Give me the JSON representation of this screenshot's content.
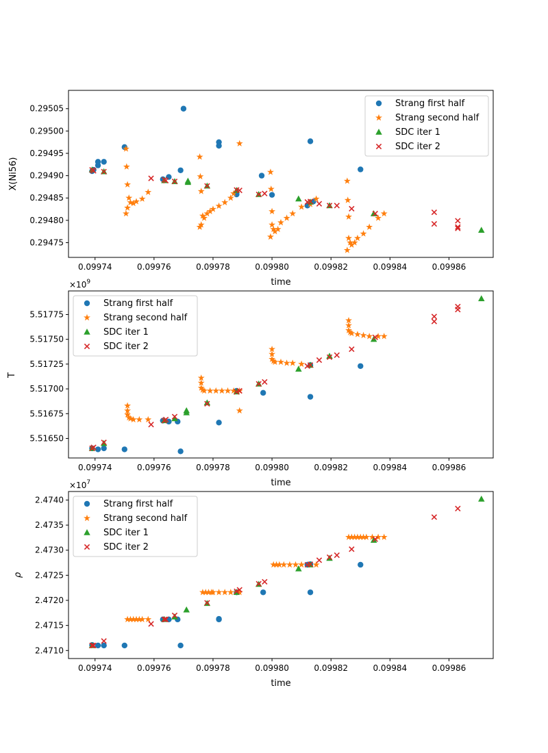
{
  "colors": {
    "strang_first": "#1f77b4",
    "strang_second": "#ff7f0e",
    "sdc1": "#2ca02c",
    "sdc2": "#d62728"
  },
  "legend_labels": [
    "Strang first half",
    "Strang second half",
    "SDC iter 1",
    "SDC iter 2"
  ],
  "chart_data": [
    {
      "type": "scatter",
      "title": "",
      "xlabel": "time",
      "ylabel": "X(Ni56)",
      "offset_label": "",
      "xlim": [
        0.099731,
        0.099875
      ],
      "ylim": [
        0.294717,
        0.295091
      ],
      "xticks": [
        "0.09974",
        "0.09976",
        "0.09978",
        "0.09980",
        "0.09982",
        "0.09984",
        "0.09986"
      ],
      "yticks": [
        "0.29475",
        "0.29480",
        "0.29485",
        "0.29490",
        "0.29495",
        "0.29500",
        "0.29505"
      ],
      "xtick_values": [
        0.09974,
        0.09976,
        0.09978,
        0.0998,
        0.09982,
        0.09984,
        0.09986
      ],
      "ytick_values": [
        0.29475,
        0.2948,
        0.29485,
        0.2949,
        0.29495,
        0.295,
        0.29505
      ],
      "legend_position": "upper right",
      "series": [
        {
          "name": "Strang first half",
          "marker": "circle",
          "color_key": "strang_first",
          "x": [
            0.099739,
            0.0997395,
            0.099741,
            0.099741,
            0.099743,
            0.09975,
            0.099763,
            0.099765,
            0.099769,
            0.09977,
            0.099782,
            0.099782,
            0.099788,
            0.0997965,
            0.0998,
            0.099812,
            0.099813,
            0.099814,
            0.09983
          ],
          "y": [
            0.29491,
            0.294913,
            0.294923,
            0.294931,
            0.294931,
            0.294964,
            0.294892,
            0.294897,
            0.294912,
            0.29505,
            0.294975,
            0.294967,
            0.294858,
            0.2949,
            0.294857,
            0.294833,
            0.294977,
            0.294842,
            0.294914
          ]
        },
        {
          "name": "Strang second half",
          "marker": "star",
          "color_key": "strang_second",
          "x": [
            0.0997505,
            0.0997507,
            0.099751,
            0.0997515,
            0.099752,
            0.099753,
            0.099754,
            0.099756,
            0.099758,
            0.0997755,
            0.0997757,
            0.099776,
            0.0997765,
            0.099777,
            0.099778,
            0.099779,
            0.09978,
            0.099782,
            0.099784,
            0.099786,
            0.099787,
            0.099789,
            0.0997995,
            0.0997997,
            0.0998,
            0.0998005,
            0.099801,
            0.099802,
            0.099803,
            0.099805,
            0.099807,
            0.09981,
            0.099813,
            0.099815,
            0.0998255,
            0.0998257,
            0.099826,
            0.0998265,
            0.099827,
            0.099828,
            0.099829,
            0.099831,
            0.099833,
            0.099836,
            0.099838,
            0.0997505,
            0.0997755,
            0.0997995,
            0.0998255,
            0.099751,
            0.099776,
            0.0998,
            0.099826
          ],
          "y": [
            0.29496,
            0.29492,
            0.29488,
            0.29485,
            0.29484,
            0.294838,
            0.294842,
            0.294848,
            0.294863,
            0.294942,
            0.294898,
            0.294865,
            0.29481,
            0.294805,
            0.294815,
            0.29482,
            0.294825,
            0.294832,
            0.29484,
            0.29485,
            0.29486,
            0.294972,
            0.294908,
            0.29487,
            0.29482,
            0.29478,
            0.294775,
            0.29478,
            0.294795,
            0.294805,
            0.294815,
            0.29483,
            0.294836,
            0.294848,
            0.294888,
            0.294845,
            0.294808,
            0.29475,
            0.294745,
            0.29475,
            0.29476,
            0.29477,
            0.294785,
            0.294805,
            0.294815,
            0.294815,
            0.294785,
            0.294763,
            0.294733,
            0.294828,
            0.29479,
            0.29479,
            0.29476
          ]
        },
        {
          "name": "SDC iter 1",
          "marker": "triangle",
          "color_key": "sdc1",
          "x": [
            0.099739,
            0.099743,
            0.0997635,
            0.099767,
            0.0997715,
            0.0997715,
            0.099778,
            0.099788,
            0.0997955,
            0.099809,
            0.099813,
            0.0998195,
            0.0998345,
            0.099871
          ],
          "y": [
            0.294913,
            0.294909,
            0.294889,
            0.294887,
            0.294888,
            0.294885,
            0.294877,
            0.294867,
            0.294858,
            0.294848,
            0.294841,
            0.294833,
            0.294815,
            0.294778
          ]
        },
        {
          "name": "SDC iter 2",
          "marker": "x",
          "color_key": "sdc2",
          "x": [
            0.099739,
            0.0997395,
            0.099743,
            0.099759,
            0.0997635,
            0.099764,
            0.099767,
            0.099778,
            0.099788,
            0.099789,
            0.0997955,
            0.0997975,
            0.099812,
            0.099813,
            0.099816,
            0.0998195,
            0.099822,
            0.099827,
            0.099835,
            0.099855,
            0.099855,
            0.099863,
            0.099863,
            0.099863
          ],
          "y": [
            0.294913,
            0.294911,
            0.294909,
            0.294894,
            0.294891,
            0.294889,
            0.294887,
            0.294877,
            0.294868,
            0.294867,
            0.294858,
            0.29486,
            0.294841,
            0.294842,
            0.294837,
            0.294833,
            0.294833,
            0.294826,
            0.294815,
            0.294818,
            0.294792,
            0.294799,
            0.294785,
            0.294782
          ]
        }
      ]
    },
    {
      "type": "scatter",
      "title": "",
      "xlabel": "time",
      "ylabel": "T",
      "offset_label": "×10",
      "offset_exp": "9",
      "xlim": [
        0.099731,
        0.099875
      ],
      "ylim": [
        5.516303,
        5.517988
      ],
      "xticks": [
        "0.09974",
        "0.09976",
        "0.09978",
        "0.09980",
        "0.09982",
        "0.09984",
        "0.09986"
      ],
      "yticks": [
        "5.51650",
        "5.51675",
        "5.51700",
        "5.51725",
        "5.51750",
        "5.51775"
      ],
      "xtick_values": [
        0.09974,
        0.09976,
        0.09978,
        0.0998,
        0.09982,
        0.09984,
        0.09986
      ],
      "ytick_values": [
        5.5165,
        5.51675,
        5.517,
        5.51725,
        5.5175,
        5.51775
      ],
      "legend_position": "upper left",
      "series": [
        {
          "name": "Strang first half",
          "marker": "circle",
          "color_key": "strang_first",
          "x": [
            0.099739,
            0.099741,
            0.099743,
            0.09975,
            0.099763,
            0.099765,
            0.099768,
            0.099769,
            0.099782,
            0.099788,
            0.099797,
            0.099813,
            0.099813,
            0.09983
          ],
          "y": [
            5.5164,
            5.51639,
            5.5164,
            5.51639,
            5.51668,
            5.51667,
            5.51667,
            5.51637,
            5.51666,
            5.51698,
            5.51696,
            5.51724,
            5.51692,
            5.51723
          ]
        },
        {
          "name": "Strang second half",
          "marker": "star",
          "color_key": "strang_second",
          "x": [
            0.099751,
            0.099751,
            0.099751,
            0.0997515,
            0.099752,
            0.099753,
            0.099755,
            0.099758,
            0.099776,
            0.099776,
            0.099776,
            0.0997765,
            0.099777,
            0.099779,
            0.099781,
            0.099783,
            0.099785,
            0.099787,
            0.099789,
            0.0998,
            0.0998,
            0.0998,
            0.0998005,
            0.099801,
            0.099803,
            0.099805,
            0.099807,
            0.09981,
            0.099826,
            0.099826,
            0.099826,
            0.0998265,
            0.099827,
            0.099829,
            0.099831,
            0.099833,
            0.099836,
            0.099838,
            0.099789
          ],
          "y": [
            5.51683,
            5.51678,
            5.51674,
            5.51671,
            5.5167,
            5.51669,
            5.51669,
            5.51669,
            5.51711,
            5.51706,
            5.51701,
            5.51699,
            5.51698,
            5.51698,
            5.51698,
            5.51698,
            5.51698,
            5.51698,
            5.51698,
            5.5174,
            5.51735,
            5.5173,
            5.51728,
            5.51727,
            5.51727,
            5.51726,
            5.51726,
            5.51725,
            5.51769,
            5.51764,
            5.51759,
            5.51757,
            5.51756,
            5.51755,
            5.51754,
            5.51753,
            5.51753,
            5.51753,
            5.51678
          ]
        },
        {
          "name": "SDC iter 1",
          "marker": "triangle",
          "color_key": "sdc1",
          "x": [
            0.099739,
            0.099743,
            0.0997635,
            0.099767,
            0.099771,
            0.099771,
            0.099778,
            0.099788,
            0.0997955,
            0.099809,
            0.099813,
            0.0998195,
            0.0998345,
            0.099871
          ],
          "y": [
            5.5164,
            5.51645,
            5.51668,
            5.5167,
            5.51678,
            5.51676,
            5.51686,
            5.51697,
            5.51705,
            5.5172,
            5.51724,
            5.51733,
            5.5175,
            5.51791
          ]
        },
        {
          "name": "SDC iter 2",
          "marker": "x",
          "color_key": "sdc2",
          "x": [
            0.099739,
            0.0997395,
            0.099743,
            0.099759,
            0.0997635,
            0.099764,
            0.099767,
            0.099778,
            0.099788,
            0.099789,
            0.0997955,
            0.0997975,
            0.099812,
            0.099813,
            0.099816,
            0.0998195,
            0.099822,
            0.099827,
            0.099835,
            0.099855,
            0.099855,
            0.099863,
            0.099863
          ],
          "y": [
            5.5164,
            5.51641,
            5.51646,
            5.51664,
            5.51668,
            5.51669,
            5.51672,
            5.51685,
            5.51697,
            5.51698,
            5.51705,
            5.51707,
            5.51723,
            5.51724,
            5.51729,
            5.51732,
            5.51734,
            5.5174,
            5.51752,
            5.51773,
            5.51768,
            5.51783,
            5.5178
          ]
        }
      ]
    },
    {
      "type": "scatter",
      "title": "",
      "xlabel": "time",
      "ylabel": "ρ",
      "offset_label": "×10",
      "offset_exp": "7",
      "xlim": [
        0.099731,
        0.099875
      ],
      "ylim": [
        2.47084,
        2.47417
      ],
      "xticks": [
        "0.09974",
        "0.09976",
        "0.09978",
        "0.09980",
        "0.09982",
        "0.09984",
        "0.09986"
      ],
      "yticks": [
        "2.4710",
        "2.4715",
        "2.4720",
        "2.4725",
        "2.4730",
        "2.4735",
        "2.4740"
      ],
      "xtick_values": [
        0.09974,
        0.09976,
        0.09978,
        0.0998,
        0.09982,
        0.09984,
        0.09986
      ],
      "ytick_values": [
        2.471,
        2.4715,
        2.472,
        2.4725,
        2.473,
        2.4735,
        2.474
      ],
      "legend_position": "upper left",
      "series": [
        {
          "name": "Strang first half",
          "marker": "circle",
          "color_key": "strang_first",
          "x": [
            0.099739,
            0.099741,
            0.099743,
            0.09975,
            0.099763,
            0.099765,
            0.099768,
            0.099769,
            0.099782,
            0.099782,
            0.099788,
            0.099797,
            0.099812,
            0.099813,
            0.099813,
            0.09983
          ],
          "y": [
            2.47111,
            2.4711,
            2.4711,
            2.4711,
            2.47162,
            2.47162,
            2.47162,
            2.4711,
            2.47162,
            2.47163,
            2.47216,
            2.47216,
            2.47271,
            2.47272,
            2.47216,
            2.47271
          ]
        },
        {
          "name": "Strang second half",
          "marker": "star",
          "color_key": "strang_second",
          "x": [
            0.099751,
            0.099752,
            0.099753,
            0.099754,
            0.099755,
            0.099756,
            0.099758,
            0.0997765,
            0.0997775,
            0.0997785,
            0.0997795,
            0.09978,
            0.099782,
            0.099784,
            0.099786,
            0.099788,
            0.099789,
            0.0998005,
            0.0998015,
            0.0998025,
            0.099804,
            0.099806,
            0.099808,
            0.09981,
            0.099815,
            0.099826,
            0.099827,
            0.099828,
            0.099829,
            0.09983,
            0.099831,
            0.099832,
            0.099834,
            0.099836,
            0.099838
          ],
          "y": [
            2.47162,
            2.47162,
            2.47162,
            2.47162,
            2.47162,
            2.47162,
            2.47162,
            2.47216,
            2.47216,
            2.47216,
            2.47216,
            2.47216,
            2.47216,
            2.47216,
            2.47216,
            2.47216,
            2.47216,
            2.47271,
            2.47271,
            2.47271,
            2.47271,
            2.47271,
            2.47271,
            2.47271,
            2.47271,
            2.47326,
            2.47326,
            2.47326,
            2.47326,
            2.47326,
            2.47326,
            2.47326,
            2.47326,
            2.47326,
            2.47326
          ]
        },
        {
          "name": "SDC iter 1",
          "marker": "triangle",
          "color_key": "sdc1",
          "x": [
            0.099739,
            0.0997635,
            0.099767,
            0.099771,
            0.099778,
            0.099788,
            0.0997955,
            0.099809,
            0.099813,
            0.0998195,
            0.0998345,
            0.099871
          ],
          "y": [
            2.4711,
            2.47162,
            2.47167,
            2.47181,
            2.47194,
            2.47216,
            2.47232,
            2.47263,
            2.47271,
            2.47284,
            2.4732,
            2.47402
          ]
        },
        {
          "name": "SDC iter 2",
          "marker": "x",
          "color_key": "sdc2",
          "x": [
            0.099739,
            0.0997395,
            0.099743,
            0.099759,
            0.0997635,
            0.099764,
            0.099767,
            0.099778,
            0.099788,
            0.099789,
            0.0997955,
            0.0997975,
            0.099812,
            0.099813,
            0.099816,
            0.0998195,
            0.099822,
            0.099827,
            0.099835,
            0.099855,
            0.099863
          ],
          "y": [
            2.4711,
            2.4711,
            2.47119,
            2.47153,
            2.47162,
            2.47162,
            2.4717,
            2.47195,
            2.47218,
            2.47221,
            2.47233,
            2.47237,
            2.47271,
            2.47272,
            2.4728,
            2.47286,
            2.4729,
            2.47302,
            2.47322,
            2.47366,
            2.47383
          ]
        }
      ]
    }
  ]
}
